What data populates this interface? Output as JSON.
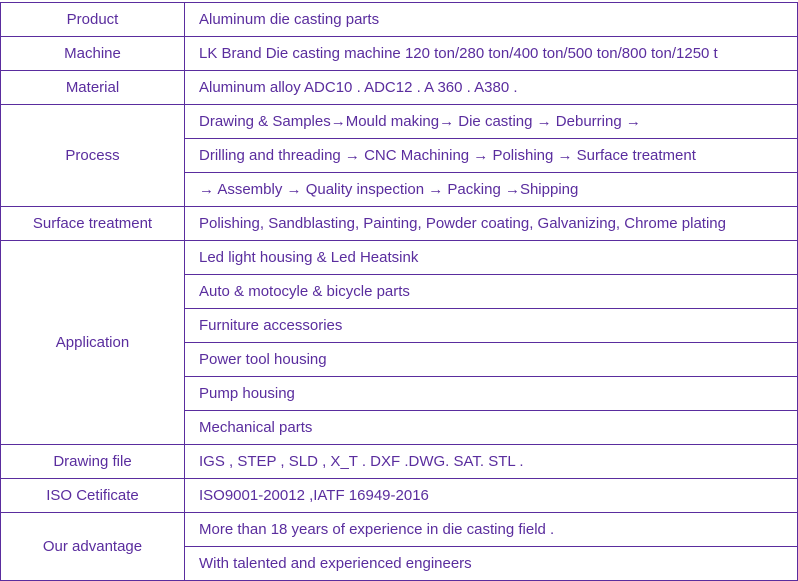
{
  "rows": {
    "product": {
      "label": "Product",
      "value": "Aluminum die casting parts"
    },
    "machine": {
      "label": "Machine",
      "value": "LK Brand Die casting machine 120 ton/280 ton/400 ton/500 ton/800 ton/1250 t"
    },
    "material": {
      "label": "Material",
      "value": " Aluminum alloy ADC10 . ADC12 . A 360 . A380   ."
    },
    "process": {
      "label": "Process",
      "lines": [
        "Drawing & Samples→Mould making→ Die casting   →   Deburring   →",
        "Drilling and threading →   CNC Machining   → Polishing   →   Surface treatment",
        "→   Assembly   →   Quality inspection   →   Packing →Shipping"
      ]
    },
    "surface": {
      "label": "Surface treatment",
      "value": "Polishing, Sandblasting, Painting, Powder coating, Galvanizing, Chrome plating"
    },
    "application": {
      "label": "Application",
      "lines": [
        " Led light housing & Led Heatsink",
        "  Auto & motocyle & bicycle   parts",
        "  Furniture accessories",
        " Power tool housing",
        "  Pump housing",
        "   Mechanical parts"
      ]
    },
    "drawing": {
      "label": "Drawing file",
      "value": "  IGS , STEP , SLD ,   X_T .   DXF .DWG. SAT. STL ."
    },
    "iso": {
      "label": "ISO Cetificate",
      "value": "  ISO9001-20012 ,IATF 16949-2016"
    },
    "advantage": {
      "label": "Our advantage",
      "lines": [
        " More than 18 years of experience in die casting field .",
        " With talented and experienced engineers"
      ]
    }
  },
  "colors": {
    "text": "#5a2d9e",
    "border": "#5a2d9e",
    "background": "#ffffff"
  }
}
